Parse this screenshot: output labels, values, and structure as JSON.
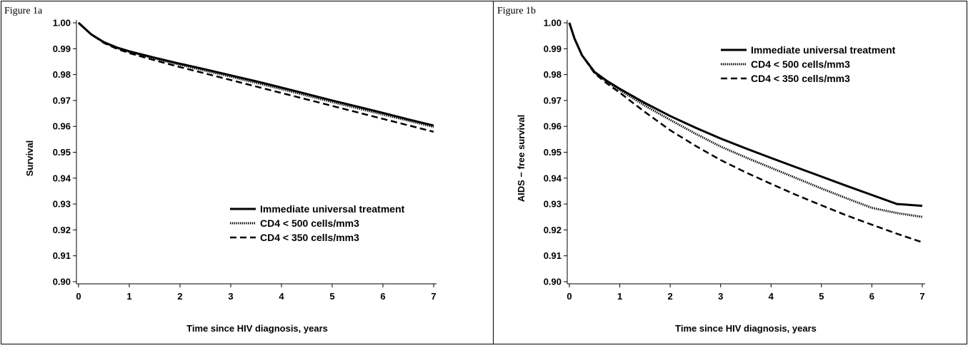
{
  "chart_data": [
    {
      "type": "line",
      "title": "Figure 1a",
      "xlabel": "Time since HIV diagnosis, years",
      "ylabel": "Survival",
      "xlim": [
        0,
        7
      ],
      "ylim": [
        0.9,
        1.0
      ],
      "xticks": [
        0,
        1,
        2,
        3,
        4,
        5,
        6,
        7
      ],
      "xtick_labels": [
        "0",
        "1",
        "2",
        "3",
        "4",
        "5",
        "6",
        "7"
      ],
      "yticks": [
        0.9,
        0.91,
        0.92,
        0.93,
        0.94,
        0.95,
        0.96,
        0.97,
        0.98,
        0.99,
        1.0
      ],
      "ytick_labels": [
        "0.90",
        "0.91",
        "0.92",
        "0.93",
        "0.94",
        "0.95",
        "0.96",
        "0.97",
        "0.98",
        "0.99",
        "1.00"
      ],
      "legend_position": "bottom-right",
      "grid": false,
      "series": [
        {
          "name": "Immediate universal treatment",
          "style": "solid",
          "x": [
            0,
            0.25,
            0.5,
            0.75,
            1,
            1.5,
            2,
            2.5,
            3,
            3.5,
            4,
            4.5,
            5,
            5.5,
            6,
            6.5,
            7
          ],
          "values": [
            1.0,
            0.9955,
            0.9925,
            0.9905,
            0.989,
            0.9865,
            0.9842,
            0.982,
            0.9797,
            0.9774,
            0.975,
            0.9725,
            0.97,
            0.9676,
            0.9652,
            0.9627,
            0.9603
          ]
        },
        {
          "name": "CD4 < 500  cells/mm3",
          "style": "dotted",
          "x": [
            0,
            0.25,
            0.5,
            0.75,
            1,
            1.5,
            2,
            2.5,
            3,
            3.5,
            4,
            4.5,
            5,
            5.5,
            6,
            6.5,
            7
          ],
          "values": [
            1.0,
            0.9955,
            0.9924,
            0.9903,
            0.9888,
            0.9862,
            0.9838,
            0.9815,
            0.9792,
            0.9768,
            0.9744,
            0.9719,
            0.9694,
            0.967,
            0.9646,
            0.9622,
            0.9598
          ]
        },
        {
          "name": "CD4 < 350  cells/mm3",
          "style": "dashed",
          "x": [
            0,
            0.25,
            0.5,
            0.75,
            1,
            1.5,
            2,
            2.5,
            3,
            3.5,
            4,
            4.5,
            5,
            5.5,
            6,
            6.5,
            7
          ],
          "values": [
            1.0,
            0.9955,
            0.9922,
            0.99,
            0.9883,
            0.9855,
            0.9829,
            0.9804,
            0.9779,
            0.9754,
            0.9729,
            0.9704,
            0.9679,
            0.9654,
            0.9629,
            0.9604,
            0.9579
          ]
        }
      ]
    },
    {
      "type": "line",
      "title": "Figure 1b",
      "xlabel": "Time since HIV diagnosis, years",
      "ylabel": "AIDS − free survival",
      "xlim": [
        0,
        7
      ],
      "ylim": [
        0.9,
        1.0
      ],
      "xticks": [
        0,
        1,
        2,
        3,
        4,
        5,
        6,
        7
      ],
      "xtick_labels": [
        "0",
        "1",
        "2",
        "3",
        "4",
        "5",
        "6",
        "7"
      ],
      "yticks": [
        0.9,
        0.91,
        0.92,
        0.93,
        0.94,
        0.95,
        0.96,
        0.97,
        0.98,
        0.99,
        1.0
      ],
      "ytick_labels": [
        "0.90",
        "0.91",
        "0.92",
        "0.93",
        "0.94",
        "0.95",
        "0.96",
        "0.97",
        "0.98",
        "0.99",
        "1.00"
      ],
      "legend_position": "top-right",
      "grid": false,
      "series": [
        {
          "name": "Immediate universal treatment",
          "style": "solid",
          "x": [
            0,
            0.1,
            0.25,
            0.5,
            0.75,
            1,
            1.5,
            2,
            2.5,
            3,
            3.5,
            4,
            4.5,
            5,
            5.5,
            6,
            6.5,
            7
          ],
          "values": [
            1.0,
            0.994,
            0.9875,
            0.981,
            0.9775,
            0.9745,
            0.969,
            0.964,
            0.9595,
            0.9553,
            0.9515,
            0.9478,
            0.9442,
            0.9406,
            0.937,
            0.9335,
            0.93,
            0.9293
          ]
        },
        {
          "name": "CD4 < 500  cells/mm3",
          "style": "dotted",
          "x": [
            0,
            0.1,
            0.25,
            0.5,
            0.75,
            1,
            1.5,
            2,
            2.5,
            3,
            3.5,
            4,
            4.5,
            5,
            5.5,
            6,
            6.5,
            7
          ],
          "values": [
            1.0,
            0.994,
            0.9875,
            0.9808,
            0.9772,
            0.974,
            0.968,
            0.9625,
            0.9572,
            0.9522,
            0.948,
            0.944,
            0.94,
            0.936,
            0.9322,
            0.9285,
            0.9265,
            0.925
          ]
        },
        {
          "name": "CD4 < 350  cells/mm3",
          "style": "dashed",
          "x": [
            0,
            0.1,
            0.25,
            0.5,
            0.75,
            1,
            1.5,
            2,
            2.5,
            3,
            3.5,
            4,
            4.5,
            5,
            5.5,
            6,
            6.5,
            7
          ],
          "values": [
            1.0,
            0.994,
            0.9875,
            0.9805,
            0.9765,
            0.973,
            0.9655,
            0.9585,
            0.9525,
            0.947,
            0.9422,
            0.9378,
            0.9335,
            0.9295,
            0.9256,
            0.922,
            0.9185,
            0.9152
          ]
        }
      ]
    }
  ]
}
